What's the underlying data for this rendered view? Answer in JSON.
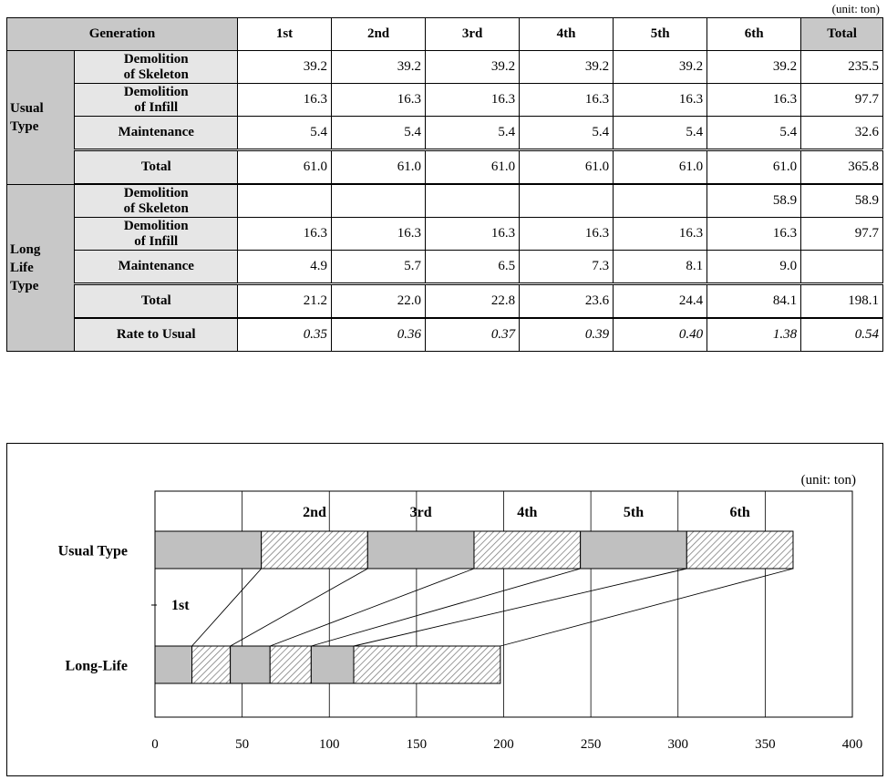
{
  "unit": "(unit: ton)",
  "table": {
    "generation_label": "Generation",
    "columns": [
      "1st",
      "2nd",
      "3rd",
      "4th",
      "5th",
      "6th"
    ],
    "total_label": "Total",
    "usual": {
      "group_line1": "Usual",
      "group_line2": "Type",
      "rows": [
        {
          "label1": "Demolition",
          "label2": "of Skeleton",
          "values": [
            "39.2",
            "39.2",
            "39.2",
            "39.2",
            "39.2",
            "39.2",
            "235.5"
          ]
        },
        {
          "label1": "Demolition",
          "label2": "of Infill",
          "values": [
            "16.3",
            "16.3",
            "16.3",
            "16.3",
            "16.3",
            "16.3",
            "97.7"
          ]
        },
        {
          "label1": "Maintenance",
          "label2": "",
          "values": [
            "5.4",
            "5.4",
            "5.4",
            "5.4",
            "5.4",
            "5.4",
            "32.6"
          ]
        }
      ],
      "total": {
        "label": "Total",
        "values": [
          "61.0",
          "61.0",
          "61.0",
          "61.0",
          "61.0",
          "61.0",
          "365.8"
        ]
      }
    },
    "longlife": {
      "group_line1": "Long",
      "group_line2": "Life",
      "group_line3": "Type",
      "rows": [
        {
          "label1": "Demolition",
          "label2": "of Skeleton",
          "values": [
            "",
            "",
            "",
            "",
            "",
            "58.9",
            "58.9"
          ]
        },
        {
          "label1": "Demolition",
          "label2": "of Infill",
          "values": [
            "16.3",
            "16.3",
            "16.3",
            "16.3",
            "16.3",
            "16.3",
            "97.7"
          ]
        },
        {
          "label1": "Maintenance",
          "label2": "",
          "values": [
            "4.9",
            "5.7",
            "6.5",
            "7.3",
            "8.1",
            "9.0",
            ""
          ]
        }
      ],
      "total": {
        "label": "Total",
        "values": [
          "21.2",
          "22.0",
          "22.8",
          "23.6",
          "24.4",
          "84.1",
          "198.1"
        ]
      },
      "rate": {
        "label": "Rate to Usual",
        "values": [
          "0.35",
          "0.36",
          "0.37",
          "0.39",
          "0.40",
          "1.38",
          "0.54"
        ]
      }
    }
  },
  "chart_data": {
    "type": "bar",
    "unit": "(unit: ton)",
    "categories": [
      "Usual Type",
      "Long-Life"
    ],
    "generation_labels": [
      "1st",
      "2nd",
      "3rd",
      "4th",
      "5th",
      "6th"
    ],
    "xlim": [
      0,
      400
    ],
    "xticks": [
      0,
      50,
      100,
      150,
      200,
      250,
      300,
      350,
      400
    ],
    "grid": true,
    "series": [
      {
        "values": [
          61.0,
          21.2
        ]
      },
      {
        "values": [
          61.0,
          22.0
        ]
      },
      {
        "values": [
          61.0,
          22.8
        ]
      },
      {
        "values": [
          61.0,
          23.6
        ]
      },
      {
        "values": [
          61.0,
          24.4
        ]
      },
      {
        "values": [
          61.0,
          84.1
        ]
      }
    ]
  },
  "colors": {
    "solid": "#c0c0c0",
    "hatch": "#808080",
    "header_gray": "#c8c8c8"
  }
}
